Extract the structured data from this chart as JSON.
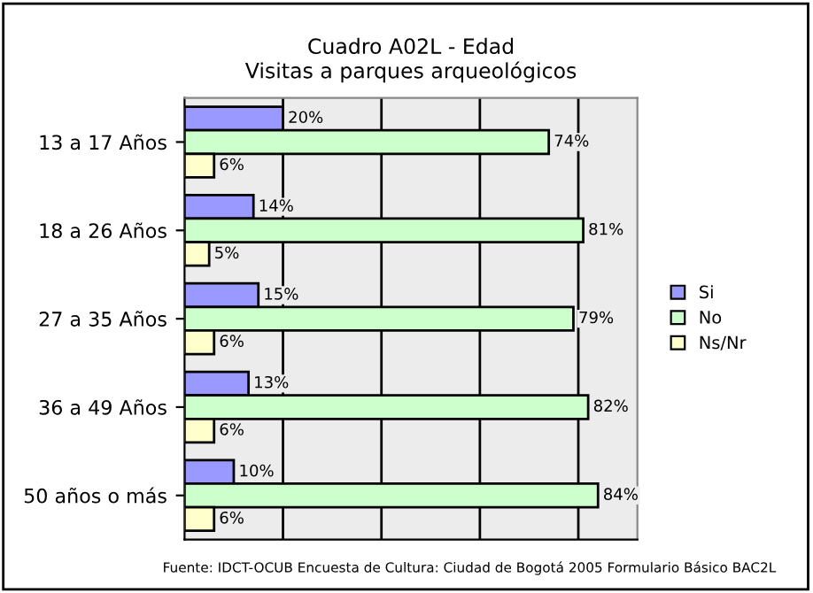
{
  "chart_data": {
    "type": "bar",
    "orientation": "horizontal",
    "title": "Cuadro A02L - Edad\nVisitas a parques arqueológicos",
    "categories": [
      "13 a 17 Años",
      "18 a 26 Años",
      "27 a 35 Años",
      "36 a 49 Años",
      "50 años o más"
    ],
    "series": [
      {
        "name": "Si",
        "color": "#9999ff",
        "values": [
          20,
          14,
          15,
          13,
          10
        ],
        "value_labels": [
          "20%",
          "14%",
          "15%",
          "13%",
          "10%"
        ]
      },
      {
        "name": "No",
        "color": "#ccffcc",
        "values": [
          74,
          81,
          79,
          82,
          84
        ],
        "value_labels": [
          "74%",
          "81%",
          "79%",
          "82%",
          "84%"
        ]
      },
      {
        "name": "Ns/Nr",
        "color": "#ffffcc",
        "values": [
          6,
          5,
          6,
          6,
          6
        ],
        "value_labels": [
          "6%",
          "5%",
          "6%",
          "6%",
          "6%"
        ]
      }
    ],
    "xlim": [
      0,
      92
    ],
    "xticks": [
      {
        "value": 20,
        "label": null
      },
      {
        "value": 40,
        "label": null
      },
      {
        "value": 60,
        "label": null
      },
      {
        "value": 80,
        "label": null
      }
    ],
    "grid": "x",
    "legend": "right",
    "annotations": [
      "Fuente: IDCT-OCUB Encuesta de Cultura: Ciudad de Bogotá 2005 Formulario Básico BAC2L"
    ]
  }
}
